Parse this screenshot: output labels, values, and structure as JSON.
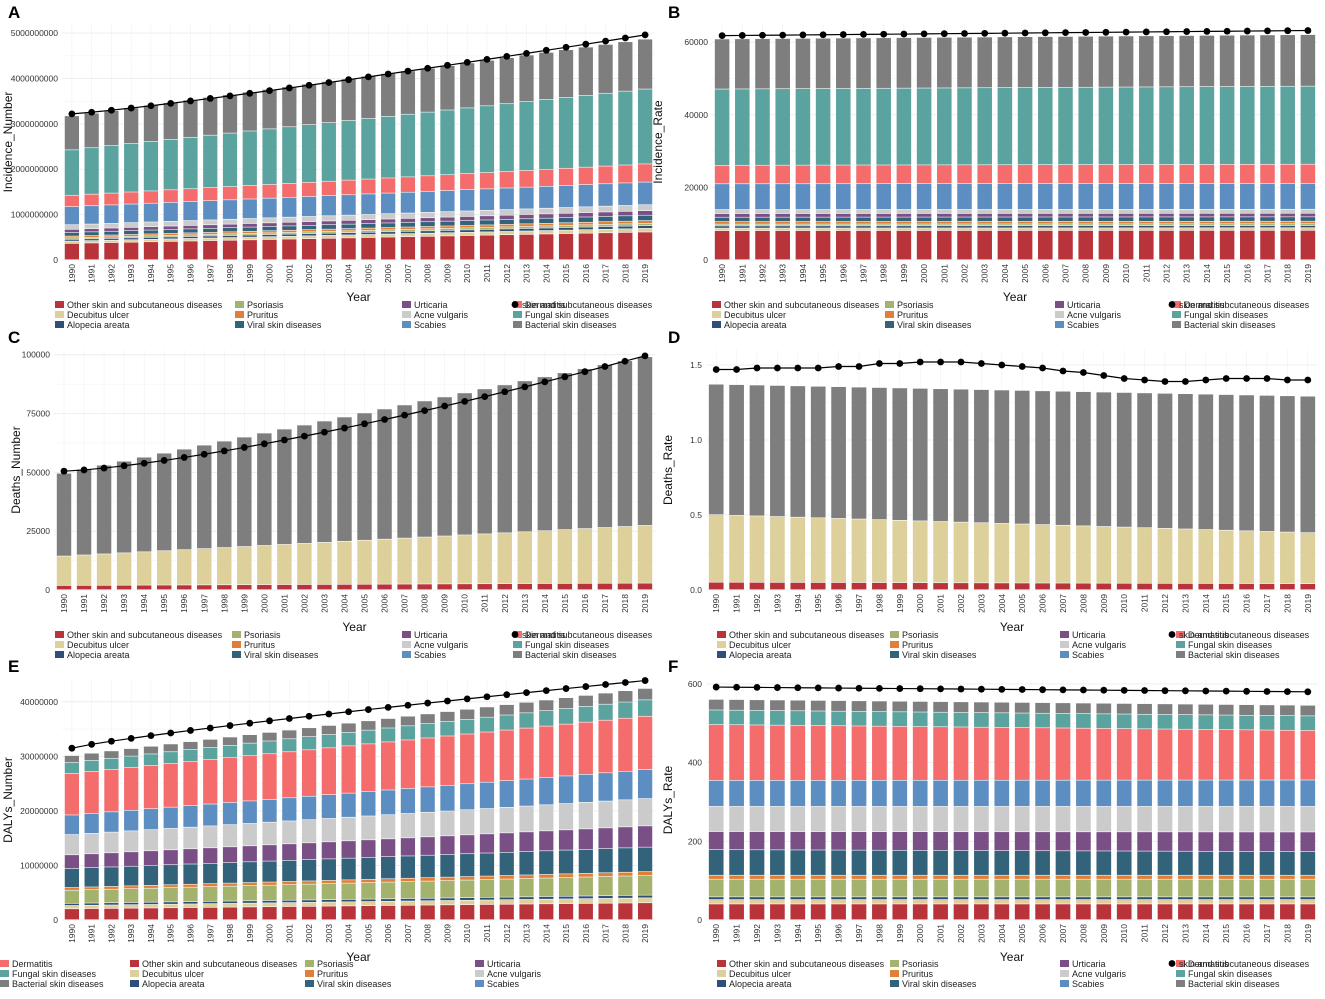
{
  "colors": {
    "Other skin and subcutaneous diseases": "#b8343a",
    "Decubitus ulcer": "#ddd09a",
    "Alopecia areata": "#2f4f7a",
    "Psoriasis": "#a3b26c",
    "Pruritus": "#e17f36",
    "Viral skin diseases": "#32637b",
    "Urticaria": "#7a4f86",
    "Acne vulgaris": "#cbcbcb",
    "Scabies": "#5d8ec2",
    "Dermatitis": "#f46c6c",
    "Fungal skin diseases": "#5ba39f",
    "Bacterial skin diseases": "#7e7e7e",
    "total": "#000000"
  },
  "legend": {
    "columns": [
      [
        "Other skin and subcutaneous diseases",
        "Decubitus ulcer",
        "Alopecia areata"
      ],
      [
        "Psoriasis",
        "Pruritus",
        "Viral skin diseases"
      ],
      [
        "Urticaria",
        "Acne vulgaris",
        "Scabies"
      ],
      [
        "Dermatitis",
        "Fungal skin diseases",
        "Bacterial skin diseases"
      ]
    ],
    "total_label": "skin and subcutaneous diseases"
  },
  "chart_data": [
    {
      "panel": "A",
      "type": "bar",
      "stacked": true,
      "xlabel": "Year",
      "ylabel": "Incidence_Number",
      "categories": [
        "1990",
        "1991",
        "1992",
        "1993",
        "1994",
        "1995",
        "1996",
        "1997",
        "1998",
        "1999",
        "2000",
        "2001",
        "2002",
        "2003",
        "2004",
        "2005",
        "2006",
        "2007",
        "2008",
        "2009",
        "2010",
        "2011",
        "2012",
        "2013",
        "2014",
        "2015",
        "2016",
        "2017",
        "2018",
        "2019"
      ],
      "ylim": [
        0,
        5200000000
      ],
      "yticks": [
        0,
        1000000000,
        2000000000,
        3000000000,
        4000000000,
        5000000000
      ],
      "ytick_labels": [
        "0",
        "1000000000",
        "2000000000",
        "3000000000",
        "4000000000",
        "5000000000"
      ],
      "series_start": {
        "Other skin and subcutaneous diseases": 360000000,
        "Decubitus ulcer": 50000000,
        "Alopecia areata": 40000000,
        "Psoriasis": 30000000,
        "Pruritus": 40000000,
        "Viral skin diseases": 80000000,
        "Urticaria": 70000000,
        "Acne vulgaris": 100000000,
        "Scabies": 400000000,
        "Dermatitis": 250000000,
        "Fungal skin diseases": 1000000000,
        "Bacterial skin diseases": 750000000
      },
      "series_end": {
        "Other skin and subcutaneous diseases": 610000000,
        "Decubitus ulcer": 80000000,
        "Alopecia areata": 60000000,
        "Psoriasis": 50000000,
        "Pruritus": 60000000,
        "Viral skin diseases": 120000000,
        "Urticaria": 100000000,
        "Acne vulgaris": 130000000,
        "Scabies": 500000000,
        "Dermatitis": 400000000,
        "Fungal skin diseases": 1650000000,
        "Bacterial skin diseases": 1100000000
      },
      "total_start": 3220000000,
      "total_end": 4960000000,
      "total_curve": 1.15
    },
    {
      "panel": "B",
      "type": "bar",
      "stacked": true,
      "xlabel": "Year",
      "ylabel": "Incidence_Rate",
      "categories": [
        "1990",
        "1991",
        "1992",
        "1993",
        "1994",
        "1995",
        "1996",
        "1997",
        "1998",
        "1999",
        "2000",
        "2001",
        "2002",
        "2003",
        "2004",
        "2005",
        "2006",
        "2007",
        "2008",
        "2009",
        "2010",
        "2011",
        "2012",
        "2013",
        "2014",
        "2015",
        "2016",
        "2017",
        "2018",
        "2019"
      ],
      "ylim": [
        0,
        65000
      ],
      "yticks": [
        0,
        20000,
        40000,
        60000
      ],
      "ytick_labels": [
        "0",
        "20000",
        "40000",
        "60000"
      ],
      "series_start": {
        "Other skin and subcutaneous diseases": 8000,
        "Decubitus ulcer": 700,
        "Alopecia areata": 600,
        "Psoriasis": 500,
        "Pruritus": 700,
        "Viral skin diseases": 1200,
        "Urticaria": 1000,
        "Acne vulgaris": 1100,
        "Scabies": 7100,
        "Dermatitis": 5100,
        "Fungal skin diseases": 21000,
        "Bacterial skin diseases": 13800
      },
      "series_end": {
        "Other skin and subcutaneous diseases": 8100,
        "Decubitus ulcer": 700,
        "Alopecia areata": 600,
        "Psoriasis": 500,
        "Pruritus": 700,
        "Viral skin diseases": 1200,
        "Urticaria": 1000,
        "Acne vulgaris": 1100,
        "Scabies": 7100,
        "Dermatitis": 5300,
        "Fungal skin diseases": 21500,
        "Bacterial skin diseases": 14200
      },
      "total_start": 61800,
      "total_end": 63200,
      "total_curve": 1.0
    },
    {
      "panel": "C",
      "type": "bar",
      "stacked": true,
      "xlabel": "Year",
      "ylabel": "Deaths_Number",
      "categories": [
        "1990",
        "1991",
        "1992",
        "1993",
        "1994",
        "1995",
        "1996",
        "1997",
        "1998",
        "1999",
        "2000",
        "2001",
        "2002",
        "2003",
        "2004",
        "2005",
        "2006",
        "2007",
        "2008",
        "2009",
        "2010",
        "2011",
        "2012",
        "2013",
        "2014",
        "2015",
        "2016",
        "2017",
        "2018",
        "2019"
      ],
      "ylim": [
        0,
        102000
      ],
      "yticks": [
        0,
        25000,
        50000,
        75000,
        100000
      ],
      "ytick_labels": [
        "0",
        "25000",
        "50000",
        "75000",
        "100000"
      ],
      "series_start": {
        "Other skin and subcutaneous diseases": 1800,
        "Decubitus ulcer": 12500,
        "Alopecia areata": 0,
        "Psoriasis": 0,
        "Pruritus": 0,
        "Viral skin diseases": 0,
        "Urticaria": 0,
        "Acne vulgaris": 0,
        "Scabies": 0,
        "Dermatitis": 0,
        "Fungal skin diseases": 0,
        "Bacterial skin diseases": 35200
      },
      "series_end": {
        "Other skin and subcutaneous diseases": 2800,
        "Decubitus ulcer": 24500,
        "Alopecia areata": 0,
        "Psoriasis": 0,
        "Pruritus": 0,
        "Viral skin diseases": 0,
        "Urticaria": 0,
        "Acne vulgaris": 0,
        "Scabies": 0,
        "Dermatitis": 0,
        "Fungal skin diseases": 0,
        "Bacterial skin diseases": 71700
      },
      "total_start": 50500,
      "total_end": 99500,
      "total_curve": 1.35
    },
    {
      "panel": "D",
      "type": "bar",
      "stacked": true,
      "xlabel": "Year",
      "ylabel": "Deaths_Rate",
      "categories": [
        "1990",
        "1991",
        "1992",
        "1993",
        "1994",
        "1995",
        "1996",
        "1997",
        "1998",
        "1999",
        "2000",
        "2001",
        "2002",
        "2003",
        "2004",
        "2005",
        "2006",
        "2007",
        "2008",
        "2009",
        "2010",
        "2011",
        "2012",
        "2013",
        "2014",
        "2015",
        "2016",
        "2017",
        "2018",
        "2019"
      ],
      "ylim": [
        0,
        1.6
      ],
      "yticks": [
        0,
        0.5,
        1.0,
        1.5
      ],
      "ytick_labels": [
        "0.0",
        "0.5",
        "1.0",
        "1.5"
      ],
      "series_start": {
        "Other skin and subcutaneous diseases": 0.05,
        "Decubitus ulcer": 0.45,
        "Alopecia areata": 0,
        "Psoriasis": 0,
        "Pruritus": 0,
        "Viral skin diseases": 0,
        "Urticaria": 0,
        "Acne vulgaris": 0,
        "Scabies": 0,
        "Dermatitis": 0,
        "Fungal skin diseases": 0,
        "Bacterial skin diseases": 0.87
      },
      "series_end": {
        "Other skin and subcutaneous diseases": 0.04,
        "Decubitus ulcer": 0.34,
        "Alopecia areata": 0,
        "Psoriasis": 0,
        "Pruritus": 0,
        "Viral skin diseases": 0,
        "Urticaria": 0,
        "Acne vulgaris": 0,
        "Scabies": 0,
        "Dermatitis": 0,
        "Fungal skin diseases": 0,
        "Bacterial skin diseases": 0.91
      },
      "total_values": [
        1.47,
        1.47,
        1.48,
        1.48,
        1.48,
        1.48,
        1.49,
        1.49,
        1.51,
        1.51,
        1.52,
        1.52,
        1.52,
        1.51,
        1.5,
        1.49,
        1.48,
        1.46,
        1.45,
        1.43,
        1.41,
        1.4,
        1.39,
        1.39,
        1.4,
        1.41,
        1.41,
        1.41,
        1.4,
        1.4
      ]
    },
    {
      "panel": "E",
      "type": "bar",
      "stacked": true,
      "xlabel": "Year",
      "ylabel": "DALYs_Number",
      "categories": [
        "1990",
        "1991",
        "1992",
        "1993",
        "1994",
        "1995",
        "1996",
        "1997",
        "1998",
        "1999",
        "2000",
        "2001",
        "2002",
        "2003",
        "2004",
        "2005",
        "2006",
        "2007",
        "2008",
        "2009",
        "2010",
        "2011",
        "2012",
        "2013",
        "2014",
        "2015",
        "2016",
        "2017",
        "2018",
        "2019"
      ],
      "ylim": [
        0,
        44000000
      ],
      "yticks": [
        0,
        10000000,
        20000000,
        30000000,
        40000000
      ],
      "ytick_labels": [
        "0",
        "10000000",
        "20000000",
        "30000000",
        "40000000"
      ],
      "series_start": {
        "Other skin and subcutaneous diseases": 2000000,
        "Decubitus ulcer": 600000,
        "Alopecia areata": 400000,
        "Psoriasis": 2400000,
        "Pruritus": 500000,
        "Viral skin diseases": 3500000,
        "Urticaria": 2500000,
        "Acne vulgaris": 3700000,
        "Scabies": 3600000,
        "Dermatitis": 7600000,
        "Fungal skin diseases": 2000000,
        "Bacterial skin diseases": 1300000
      },
      "series_end": {
        "Other skin and subcutaneous diseases": 3100000,
        "Decubitus ulcer": 900000,
        "Alopecia areata": 500000,
        "Psoriasis": 3600000,
        "Pruritus": 700000,
        "Viral skin diseases": 4500000,
        "Urticaria": 3900000,
        "Acne vulgaris": 5000000,
        "Scabies": 5300000,
        "Dermatitis": 9800000,
        "Fungal skin diseases": 3000000,
        "Bacterial skin diseases": 2100000
      },
      "total_start": 31500000,
      "total_end": 43900000,
      "total_curve": 0.85
    },
    {
      "panel": "F",
      "type": "bar",
      "stacked": true,
      "xlabel": "Year",
      "ylabel": "DALYs_Rate",
      "categories": [
        "1990",
        "1991",
        "1992",
        "1993",
        "1994",
        "1995",
        "1996",
        "1997",
        "1998",
        "1999",
        "2000",
        "2001",
        "2002",
        "2003",
        "2004",
        "2005",
        "2006",
        "2007",
        "2008",
        "2009",
        "2010",
        "2011",
        "2012",
        "2013",
        "2014",
        "2015",
        "2016",
        "2017",
        "2018",
        "2019"
      ],
      "ylim": [
        0,
        610
      ],
      "yticks": [
        0,
        200,
        400,
        600
      ],
      "ytick_labels": [
        "0",
        "200",
        "400",
        "600"
      ],
      "series_start": {
        "Other skin and subcutaneous diseases": 40,
        "Decubitus ulcer": 11,
        "Alopecia areata": 7,
        "Psoriasis": 45,
        "Pruritus": 10,
        "Viral skin diseases": 65,
        "Urticaria": 46,
        "Acne vulgaris": 64,
        "Scabies": 66,
        "Dermatitis": 142,
        "Fungal skin diseases": 37,
        "Bacterial skin diseases": 27
      },
      "series_end": {
        "Other skin and subcutaneous diseases": 40,
        "Decubitus ulcer": 11,
        "Alopecia areata": 7,
        "Psoriasis": 45,
        "Pruritus": 10,
        "Viral skin diseases": 60,
        "Urticaria": 50,
        "Acne vulgaris": 65,
        "Scabies": 67,
        "Dermatitis": 126,
        "Fungal skin diseases": 37,
        "Bacterial skin diseases": 27
      },
      "total_start": 592,
      "total_end": 580,
      "total_curve": 1.0
    }
  ]
}
